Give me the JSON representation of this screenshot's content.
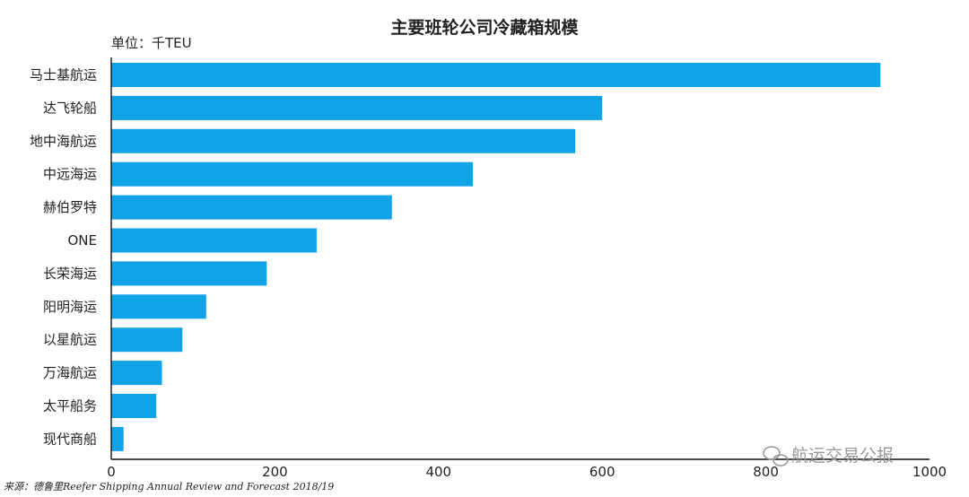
{
  "chart_data": {
    "type": "bar",
    "orientation": "horizontal",
    "title": "主要班轮公司冷藏箱规模",
    "unit_label": "单位：千TEU",
    "categories": [
      "马士基航运",
      "达飞轮船",
      "地中海航运",
      "中远海运",
      "赫伯罗特",
      "ONE",
      "长荣海运",
      "阳明海运",
      "以星航运",
      "万海航运",
      "太平船务",
      "现代商船"
    ],
    "values": [
      940,
      600,
      567,
      442,
      343,
      251,
      190,
      116,
      87,
      62,
      55,
      15
    ],
    "xlim": [
      0,
      1000
    ],
    "x_ticks": [
      "0",
      "200",
      "400",
      "600",
      "800",
      "1000"
    ],
    "grid": false,
    "colors": {
      "bar": "#10a3e8"
    }
  },
  "source_note": "来源：德鲁里Reefer Shipping Annual Review and Forecast 2018/19",
  "watermark": "航运交易公报",
  "watermark_icon": "wechat-icon"
}
